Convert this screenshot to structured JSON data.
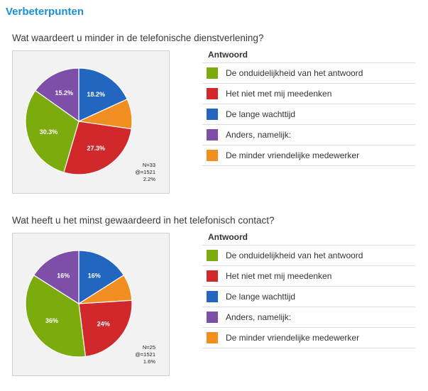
{
  "page_title": "Verbeterpunten",
  "legend_header": "Antwoord",
  "colors": {
    "green": "#7cab0d",
    "red": "#d0282b",
    "blue": "#2266bf",
    "purple": "#7d4fa8",
    "orange": "#f08e1f"
  },
  "chart_data": [
    {
      "type": "pie",
      "title": "Wat waardeert u minder in de telefonische dienstverlening?",
      "legend_placement": "right",
      "slices": [
        {
          "label": "De onduidelijkheid van het antwoord",
          "value": 30.3,
          "color": "#7cab0d",
          "value_label": "30.3%"
        },
        {
          "label": "Het niet met mij meedenken",
          "value": 27.3,
          "color": "#d0282b",
          "value_label": "27.3%"
        },
        {
          "label": "De lange wachttijd",
          "value": 18.2,
          "color": "#2266bf",
          "value_label": "18.2%"
        },
        {
          "label": "Anders, namelijk:",
          "value": 15.2,
          "color": "#7d4fa8",
          "value_label": "15.2%"
        },
        {
          "label": "De minder vriendelijke medewerker",
          "value": 9.1,
          "color": "#f08e1f",
          "value_label": ""
        }
      ],
      "stats": [
        "N=33",
        "@=1521",
        "2.2%"
      ]
    },
    {
      "type": "pie",
      "title": "Wat heeft u het minst gewaardeerd in het telefonisch contact?",
      "legend_placement": "right",
      "slices": [
        {
          "label": "De onduidelijkheid van het antwoord",
          "value": 36,
          "color": "#7cab0d",
          "value_label": "36%"
        },
        {
          "label": "Het niet met mij meedenken",
          "value": 24,
          "color": "#d0282b",
          "value_label": "24%"
        },
        {
          "label": "De lange wachttijd",
          "value": 16,
          "color": "#2266bf",
          "value_label": "16%"
        },
        {
          "label": "Anders, namelijk:",
          "value": 16,
          "color": "#7d4fa8",
          "value_label": "16%"
        },
        {
          "label": "De minder vriendelijke medewerker",
          "value": 8,
          "color": "#f08e1f",
          "value_label": ""
        }
      ],
      "stats": [
        "N=25",
        "@=1521",
        "1.6%"
      ]
    }
  ]
}
